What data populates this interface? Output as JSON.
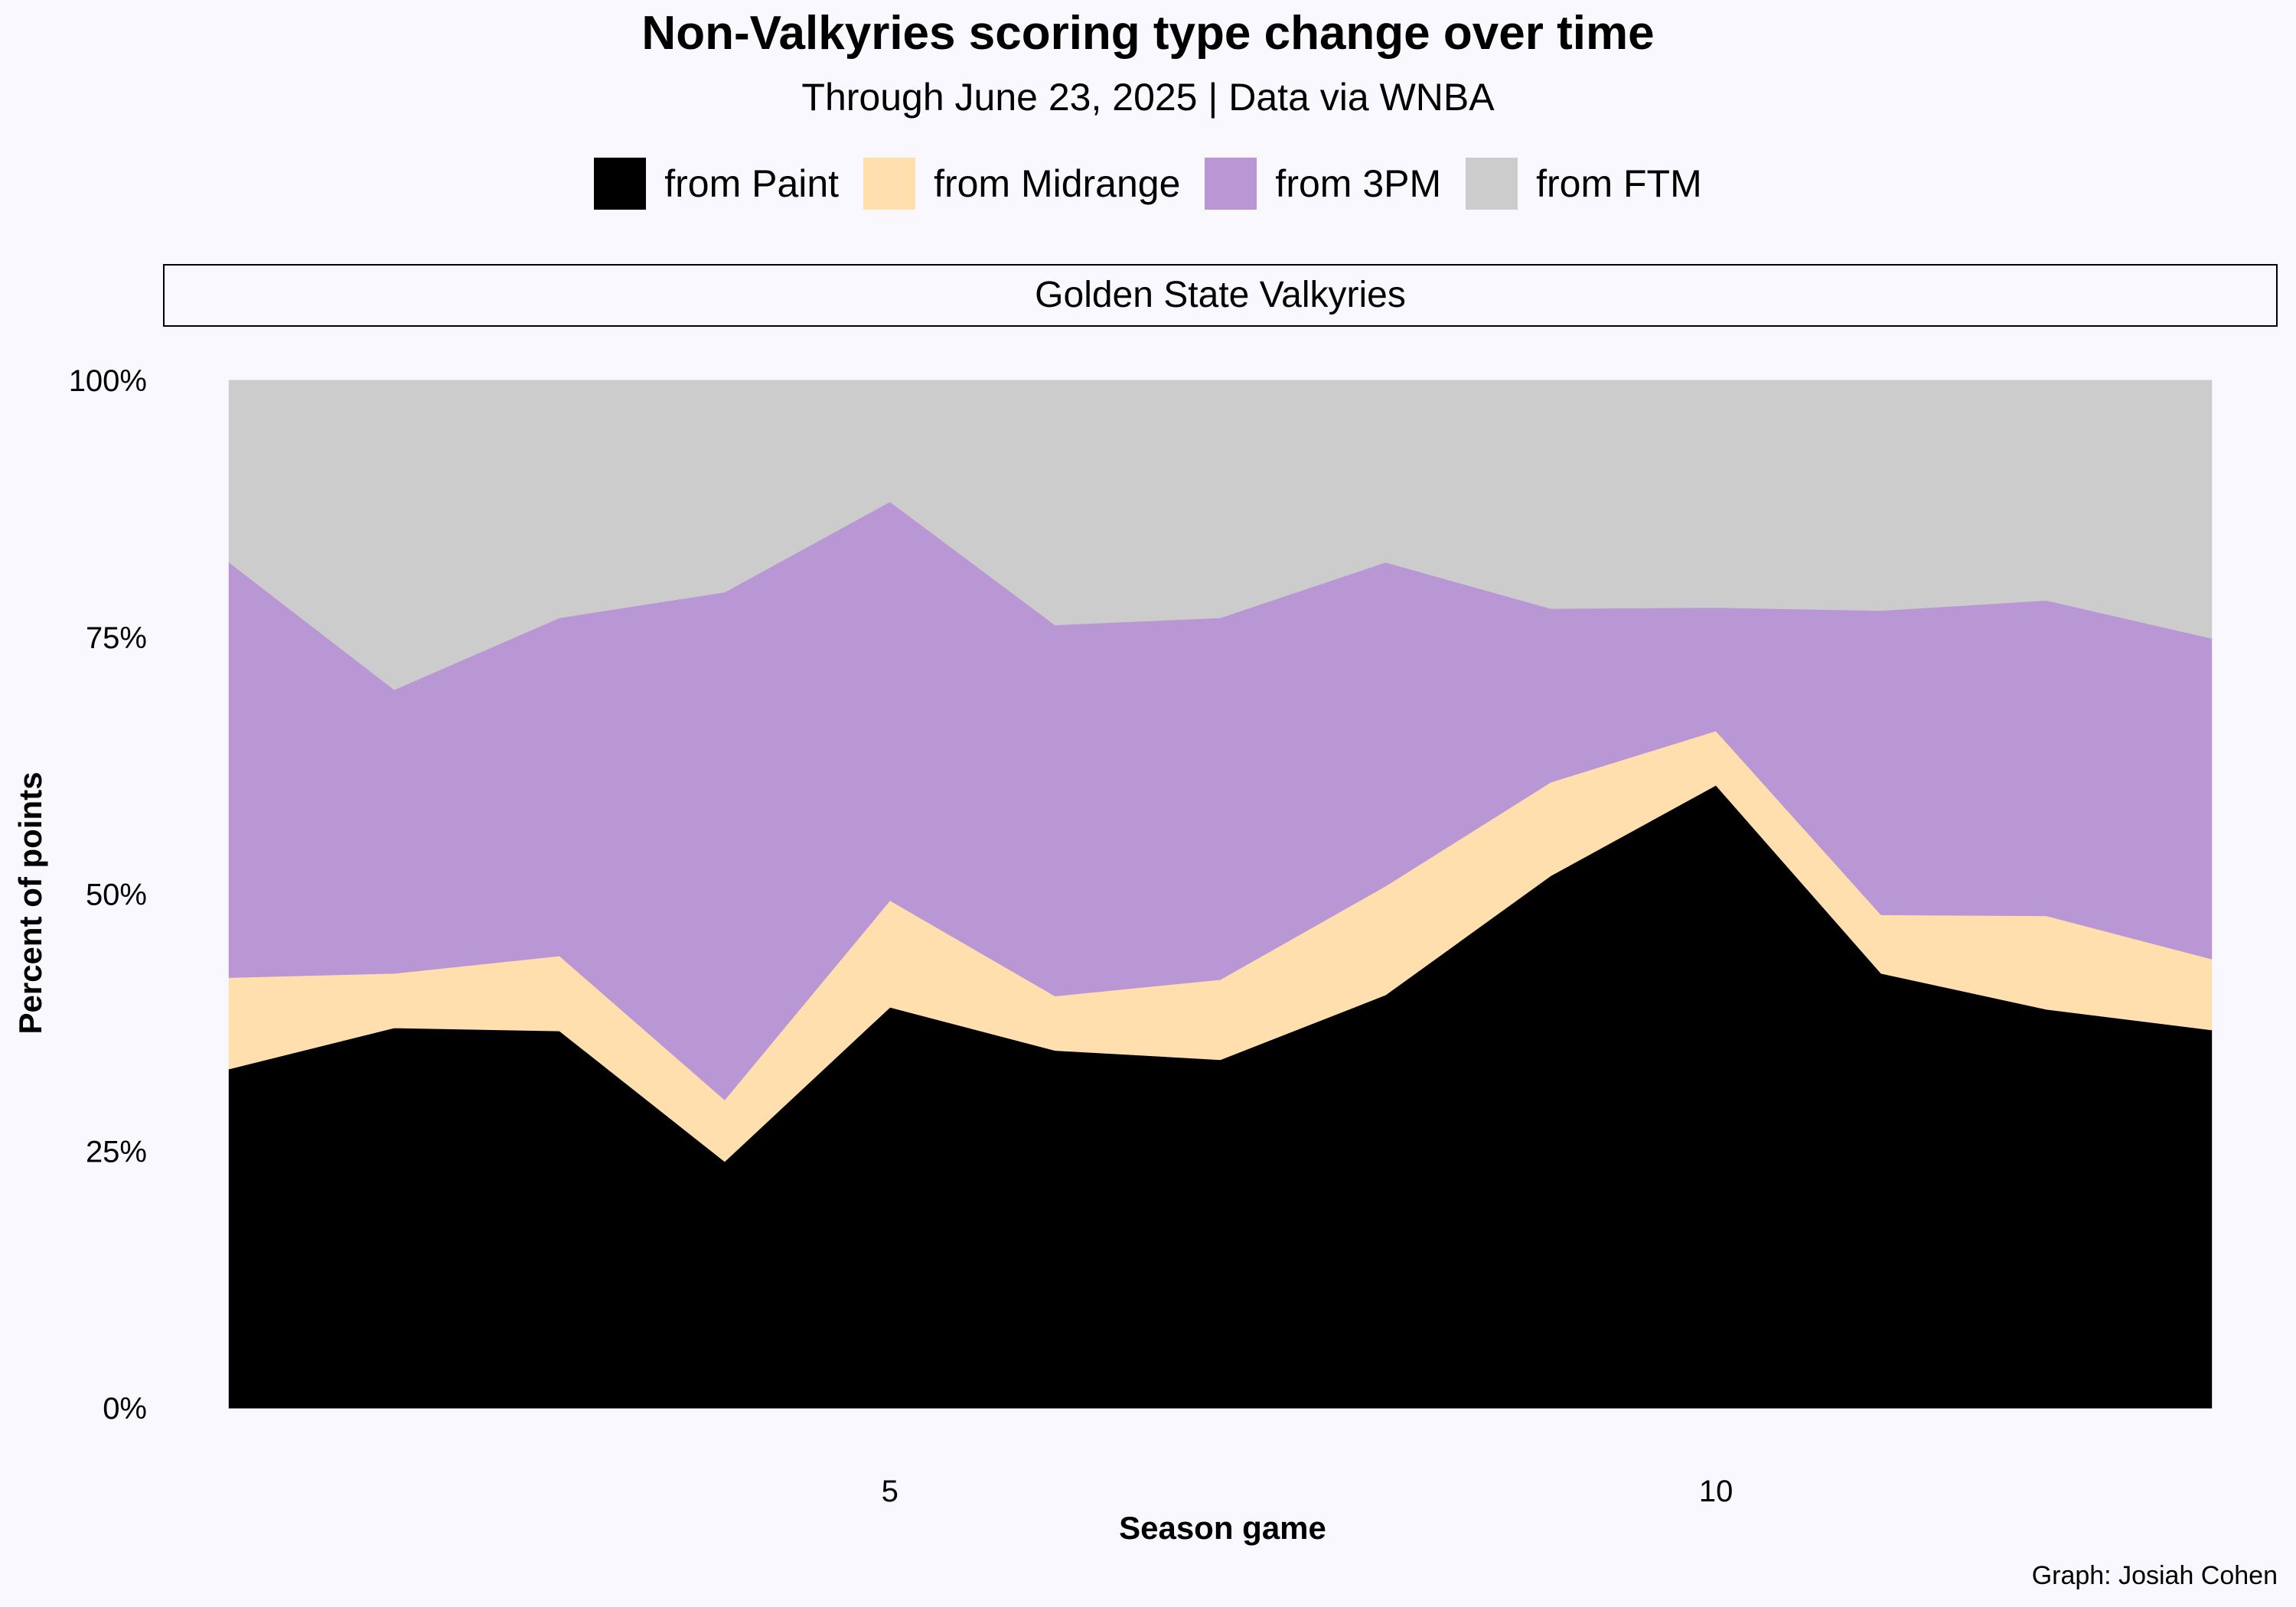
{
  "chart_data": {
    "type": "area",
    "stacked": true,
    "normalized": true,
    "title": "Non-Valkyries scoring type change over time",
    "subtitle": "Through June 23, 2025  |  Data via WNBA",
    "facet_label": "Golden State Valkyries",
    "xlabel": "Season game",
    "ylabel": "Percent of points",
    "caption": "Graph: Josiah Cohen",
    "x": [
      1,
      2,
      3,
      4,
      5,
      6,
      7,
      8,
      9,
      10,
      11,
      12,
      13
    ],
    "xlim": [
      0.6,
      13.4
    ],
    "x_ticks": [
      5,
      10
    ],
    "x_tick_labels": [
      "5",
      "10"
    ],
    "ylim": [
      0,
      100
    ],
    "y_ticks": [
      0,
      25,
      50,
      75,
      100
    ],
    "y_tick_labels": [
      "0%",
      "25%",
      "50%",
      "75%",
      "100%"
    ],
    "grid": false,
    "legend_position": "top",
    "series": [
      {
        "name": "from Paint",
        "color": "#000000",
        "values": [
          33,
          37,
          36.7,
          24,
          39,
          34.8,
          33.9,
          40.2,
          51.8,
          60.6,
          42.3,
          38.8,
          36.8
        ]
      },
      {
        "name": "from Midrange",
        "color": "#ffdfae",
        "values": [
          8.9,
          5.3,
          7.3,
          6,
          10.4,
          5.3,
          7.8,
          10.6,
          9.1,
          5.3,
          5.7,
          9.1,
          6.9
        ]
      },
      {
        "name": "from 3PM",
        "color": "#b996d4",
        "values": [
          40.4,
          27.6,
          32.9,
          49.4,
          38.8,
          36.1,
          35.2,
          31.5,
          16.9,
          12,
          29.6,
          30.7,
          31.2
        ]
      },
      {
        "name": "from FTM",
        "color": "#cccccc",
        "values": [
          17.7,
          30.1,
          23.1,
          20.6,
          11.8,
          23.8,
          23.1,
          17.7,
          22.2,
          22.1,
          22.4,
          21.4,
          25.1
        ]
      }
    ]
  }
}
